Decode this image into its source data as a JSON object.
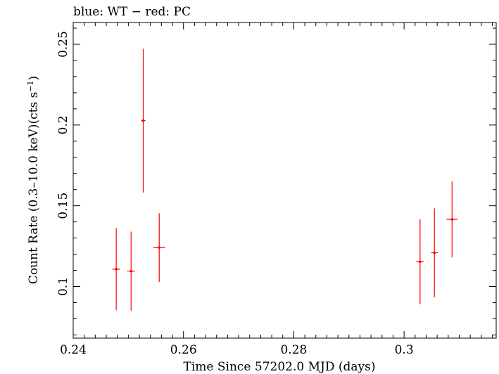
{
  "chart_data": {
    "type": "scatter",
    "title": "blue: WT − red: PC",
    "xlabel": "Time Since 57202.0 MJD (days)",
    "ylabel_main": "Count Rate (0.3–10.0 keV)(cts s",
    "ylabel_sup": "−1",
    "ylabel_close": ")",
    "xlim": [
      0.24,
      0.3167
    ],
    "ylim": [
      0.068,
      0.2635
    ],
    "xticks": [
      0.24,
      0.26,
      0.28,
      0.3
    ],
    "xtick_labels": [
      "0.24",
      "0.26",
      "0.28",
      "0.3"
    ],
    "yticks": [
      0.1,
      0.15,
      0.2,
      0.25
    ],
    "ytick_labels": [
      "0.1",
      "0.15",
      "0.2",
      "0.25"
    ],
    "grid": false,
    "series": [
      {
        "color": "#ff0000",
        "points": [
          {
            "x": 0.2478,
            "xerr": 0.0007,
            "y": 0.1107,
            "yerr": 0.0255
          },
          {
            "x": 0.2505,
            "xerr": 0.0007,
            "y": 0.1095,
            "yerr": 0.0245
          },
          {
            "x": 0.2527,
            "xerr": 0.0004,
            "y": 0.2027,
            "yerr": 0.0445
          },
          {
            "x": 0.2556,
            "xerr": 0.0011,
            "y": 0.1241,
            "yerr": 0.0213
          },
          {
            "x": 0.3029,
            "xerr": 0.0007,
            "y": 0.1153,
            "yerr": 0.0263
          },
          {
            "x": 0.3055,
            "xerr": 0.0006,
            "y": 0.1209,
            "yerr": 0.0275
          },
          {
            "x": 0.3087,
            "xerr": 0.001,
            "y": 0.1416,
            "yerr": 0.0236
          }
        ]
      }
    ]
  }
}
